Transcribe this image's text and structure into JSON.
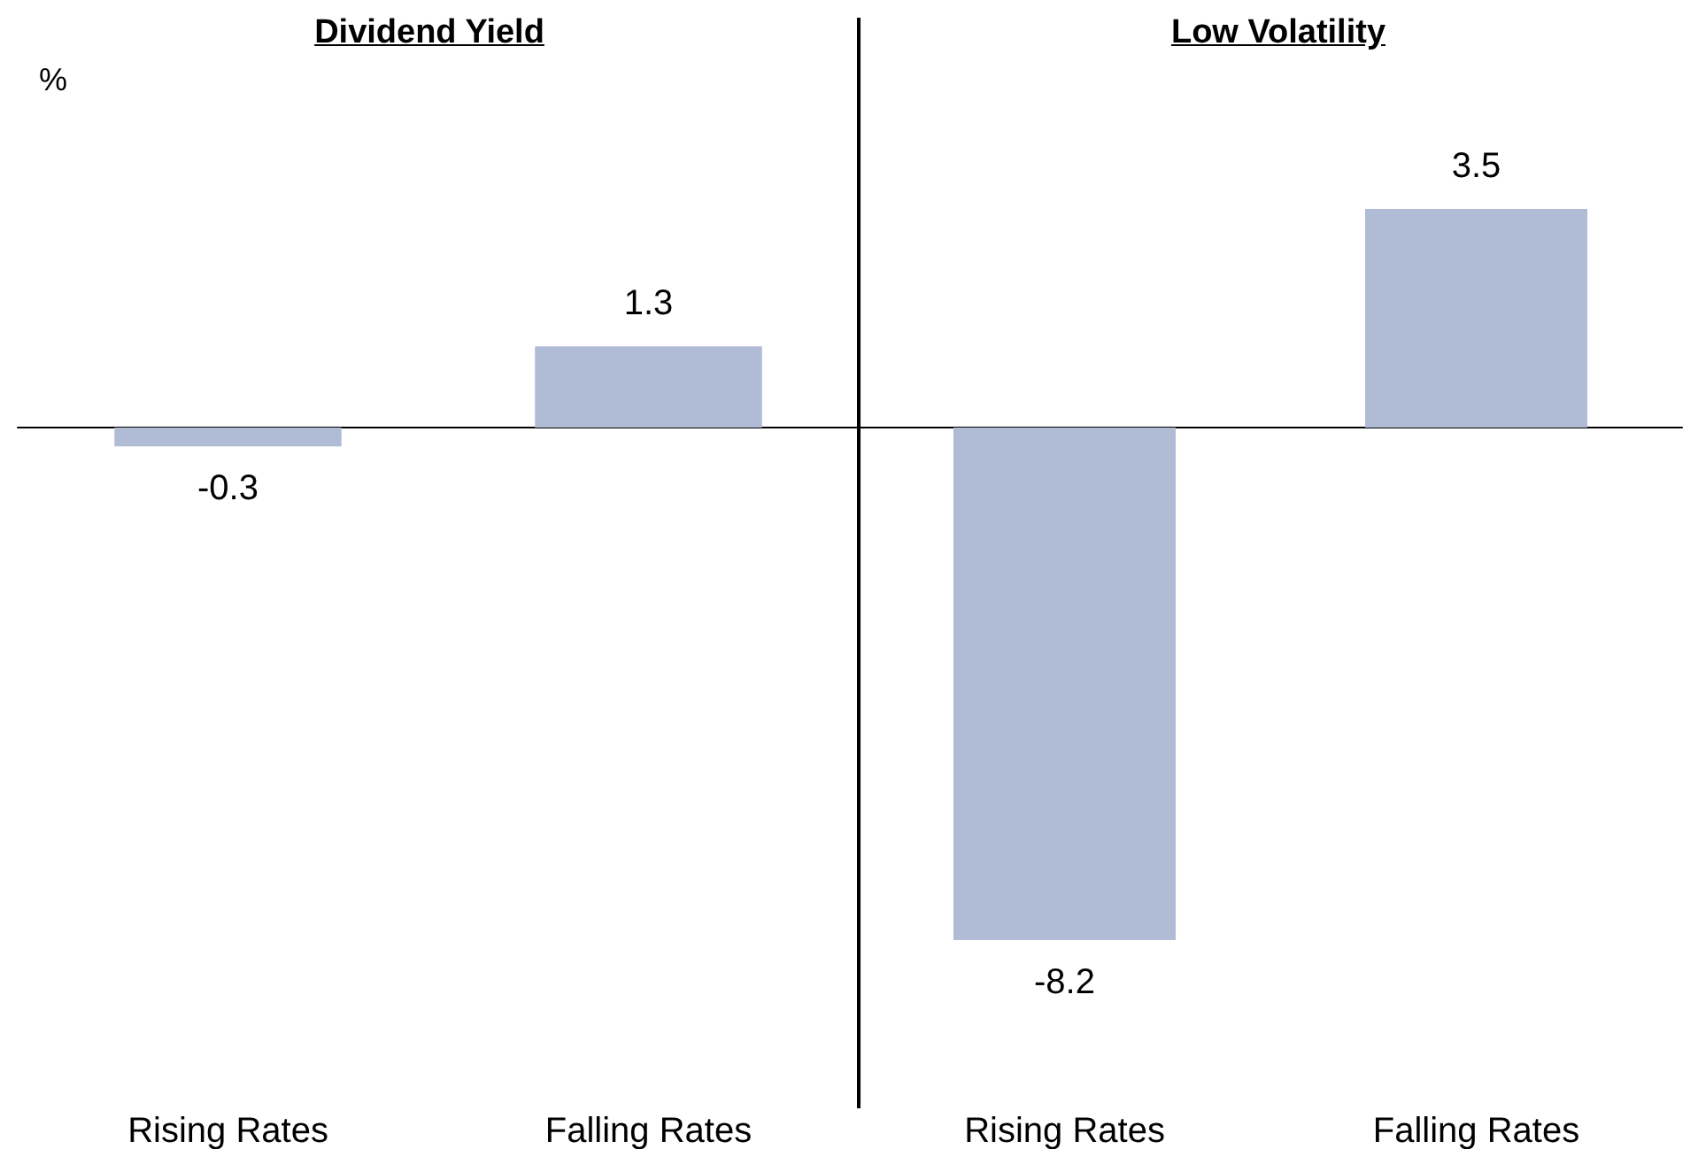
{
  "chart_data": [
    {
      "type": "bar",
      "title": "Dividend Yield",
      "ylabel": "%",
      "categories": [
        "Rising Rates",
        "Falling Rates"
      ],
      "values": [
        -0.3,
        1.3
      ],
      "color": "#b0bcd6",
      "data_labels": true
    },
    {
      "type": "bar",
      "title": "Low Volatility",
      "categories": [
        "Rising Rates",
        "Falling Rates"
      ],
      "values": [
        -8.2,
        3.5
      ],
      "color": "#b0bcd6",
      "data_labels": true
    }
  ]
}
